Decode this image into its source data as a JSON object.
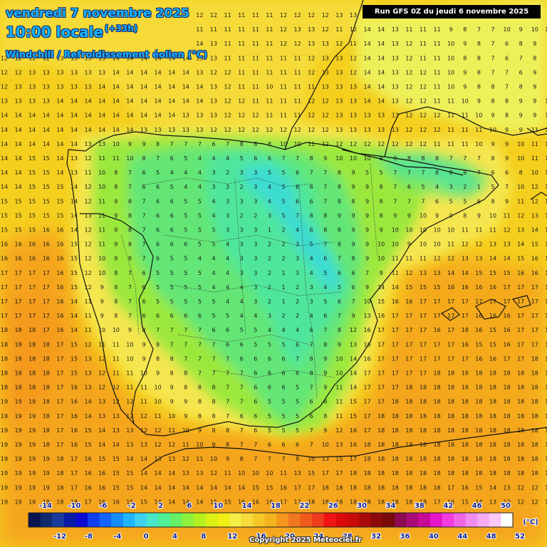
{
  "header": {
    "date_line": "vendredi 7 novembre 2025",
    "time_line": "10:00 locale",
    "lead_time": "(+33h)",
    "variable": "Windchill / Refroidissement éolien (°C)",
    "run_info": "Run GFS 0Z du jeudi 6 novembre 2025"
  },
  "legend": {
    "unit": "(°C)",
    "top_labels": [
      "-14",
      "-10",
      "-6",
      "-2",
      "2",
      "6",
      "10",
      "14",
      "18",
      "22",
      "26",
      "30",
      "34",
      "38",
      "42",
      "46",
      "50"
    ],
    "bottom_labels": [
      "-12",
      "-8",
      "-4",
      "0",
      "4",
      "8",
      "12",
      "16",
      "20",
      "24",
      "28",
      "32",
      "36",
      "40",
      "44",
      "48",
      "52"
    ],
    "colors": [
      "#0a1450",
      "#102a6e",
      "#1a3c9c",
      "#0a1aa8",
      "#0a0ad2",
      "#0f3ef0",
      "#1464ff",
      "#148cff",
      "#1eb4ff",
      "#3cd2f0",
      "#46e6c8",
      "#50f096",
      "#64f064",
      "#8cf03c",
      "#b4f01e",
      "#dcf014",
      "#f0f014",
      "#f5f046",
      "#f5dc3c",
      "#f5c828",
      "#f5b41e",
      "#f5961e",
      "#f0781e",
      "#f05a1e",
      "#f03c1e",
      "#f01414",
      "#dc0a0a",
      "#c80a0a",
      "#aa0a0a",
      "#8c0a0a",
      "#780a0a",
      "#8c0a50",
      "#aa0a78",
      "#c80a96",
      "#e614c8",
      "#f03cdc",
      "#f064e6",
      "#f08cf0",
      "#f5aaf5",
      "#fac8fa",
      "#ffffff"
    ]
  },
  "copyright": "Copyright 2025 Meteociel.fr",
  "grid_values": [
    "11 11 11 11 11 11 11 11 11 12 12 12 13 13 12 12 11 11 11 11 12 12 12 12 13 13 13 12 11 11 11 10 10 9 8 7 7 10 10 10",
    "12 12 12 12 13 13 13 13 14 14 14 14 15 12 11 11 11 11 11 11 12 13 13 12 11 12 14 14 13 11 11 11 9 8 7 7 10 9 10 10",
    "12 12 12 12 13 13 13 13 14 14 14 14 14 14 14 13 11 11 11 11 12 12 13 13 12 11 14 14 13 12 11 11 10 9 8 7 6 8 9 9",
    "12 12 12 12 13 13 13 13 14 14 14 14 14 14 13 13 11 11 11 11 11 11 12 13 13 12 14 14 13 12 11 11 10 8 8 7 6 7 8 8",
    "12 12 13 13 13 13 13 13 14 14 14 14 14 14 13 12 12 11 11 11 11 11 12 13 13 12 14 14 13 12 12 11 10 9 8 7 7 6 9 9",
    "12 13 13 13 13 13 13 14 14 14 14 14 14 14 14 13 12 11 11 10 11 11 11 13 13 13 14 14 13 12 12 11 10 9 8 8 7 8 9 9",
    "13 13 13 13 14 14 14 14 14 14 14 14 14 14 14 13 12 12 11 11 11 11 12 12 13 13 14 14 13 12 12 11 11 10 9 8 8 9 9 10",
    "14 14 14 14 14 14 14 14 14 14 14 14 14 13 13 13 12 12 12 11 11 11 12 12 13 13 13 13 13 12 12 12 11 11 10 9 8 9 9 10",
    "14 14 14 14 14 14 14 14 14 14 13 13 13 13 13 12 12 12 12 12 12 12 12 12 13 13 13 13 13 12 12 12 11 11 11 10 9 9 11 11",
    "14 14 14 14 14 14 13 13 10 9 9 8 7 7 7 6 7 8 8 8 10 10 11 12 12 12 12 12 12 12 12 11 11 11 10 9 9 10 11 12",
    "14 14 15 15 14 13 12 11 11 10 8 7 6 5 4 4 4 5 6 6 7 7 8 9 10 10 10 9 9 8 8 8 7 7 7 8 9 10 11 12",
    "14 14 15 15 14 13 11 10 8 7 6 5 4 4 4 3 2 3 3 5 5 6 7 7 8 9 5 5 7 7 7 8 8 8 7 6 6 8 10 12",
    "14 14 15 15 15 14 12 10 8 7 6 6 5 4 4 3 3 2 3 4 5 6 6 7 8 9 9 8 7 6 5 4 3 2 1 5 7 10 12 12",
    "15 15 15 15 15 14 12 11 9 8 7 6 6 5 5 4 3 3 3 4 5 6 6 7 8 8 9 8 7 7 7 6 5 5 6 8 9 11 12 13",
    "15 15 15 15 15 14 13 11 9 8 7 6 6 5 5 4 3 2 2 3 5 7 8 8 9 9 9 8 9 9 10 9 9 8 9 10 11 12 13 14",
    "15 15 15 16 16 14 12 11 9 8 7 6 6 5 5 5 3 3 3 1 2 4 6 8 8 9 9 9 10 10 10 10 10 11 11 11 12 13 14 15",
    "16 16 16 16 16 15 12 11 9 8 7 6 6 6 5 5 4 3 3 2 2 3 5 7 8 9 9 10 10 9 10 10 11 12 12 13 13 14 15 16",
    "16 16 16 16 16 15 12 10 9 8 7 6 5 5 4 4 4 3 3 2 2 3 4 6 7 8 9 10 11 11 11 12 12 13 13 14 14 15 16 16",
    "17 17 17 17 16 15 12 10 8 7 6 5 5 5 5 4 4 3 3 2 1 3 4 5 6 6 7 9 11 12 13 13 14 14 15 15 15 16 16 17",
    "17 17 17 17 16 15 12 9 8 7 6 5 5 5 5 4 4 4 3 2 1 2 3 4 5 6 9 14 14 15 15 15 16 16 16 16 17 17 17 17",
    "17 17 17 17 16 14 11 9 8 7 6 5 5 5 5 5 4 4 3 2 1 2 3 5 6 7 10 15 16 16 17 17 17 17 17 17 17 17 17 17",
    "17 17 17 17 16 14 11 9 8 7 6 6 6 6 6 5 5 4 4 3 2 2 4 6 7 9 13 16 17 17 17 17 17 17 16 16 16 17 17 17",
    "18 18 18 17 16 14 11 10 10 9 8 7 7 7 7 6 6 5 5 4 4 4 6 7 8 12 16 17 17 17 17 16 17 18 16 15 16 17 17 18",
    "18 18 18 18 17 15 12 11 11 10 9 8 7 7 7 7 6 6 5 5 5 6 7 8 9 13 16 17 17 17 17 17 17 16 15 15 16 17 17 18",
    "18 18 18 18 17 15 13 12 11 10 9 8 8 7 7 7 7 6 6 6 6 7 8 9 10 14 16 17 17 17 17 17 17 17 16 16 17 17 18 18",
    "18 18 18 18 17 15 13 12 11 11 10 9 8 8 7 7 7 7 6 6 6 6 8 9 10 14 17 17 17 17 17 18 18 18 18 18 18 18 18 18",
    "18 18 18 18 17 16 13 12 12 11 11 10 9 8 8 8 7 7 6 6 6 5 7 9 11 14 17 17 17 18 18 18 18 18 18 18 18 18 18 18",
    "19 19 19 18 17 16 14 13 12 12 11 10 9 9 8 8 7 7 6 5 5 5 6 8 11 15 17 17 18 18 18 18 18 18 18 18 18 18 18 18",
    "19 19 19 18 17 16 14 13 13 12 12 11 10 9 8 8 7 6 6 5 5 5 6 8 11 15 17 18 18 18 18 18 18 18 18 18 18 18 18 18",
    "19 19 19 18 17 16 15 14 13 13 12 12 11 10 9 8 8 7 6 5 5 5 7 9 12 16 17 18 18 18 18 18 18 18 18 18 18 18 18 18",
    "19 19 19 18 17 16 15 14 14 13 13 12 12 11 10 9 8 7 7 6 6 6 7 10 13 16 18 18 18 18 18 18 18 18 18 18 18 18 18 18",
    "19 19 19 19 18 17 16 15 15 14 14 13 13 12 11 10 9 8 7 7 7 8 10 13 15 17 18 18 18 18 18 18 18 18 18 18 18 18 18 18",
    "19 19 19 19 18 17 16 16 15 15 14 14 14 13 13 12 11 10 10 10 11 13 15 17 17 18 18 18 18 18 18 18 18 18 18 18 18 18 18 18",
    "19 19 19 19 18 17 16 16 15 15 14 14 14 14 14 14 14 14 15 15 16 17 17 18 18 18 18 18 18 18 18 18 17 16 15 14 13 12 12 12",
    "19 19 19 19 18 18 17 16 16 15 15 14 14 14 14 15 15 16 16 16 17 17 18 18 18 18 18 18 18 18 18 17 16 15 14 13 12 12 12 12",
    "19 19 19 19 19 18 18 17 17 16 16 15 15 15 16 16 16 17 17 17 17 18 18 18 18 18 18 18 18 18 17 16 15 14 13 12 12 12 12 12",
    "19 19 19 19 19 19 18 18 17 17 17 16 16 16 16 17 17 17 17 18 18 18 18 18 18 18 18 18 18 18 18 17 16 15 14 13 12 12 12 12",
    "19 19 19 19 19 19 19 18 18 18 17 17 17 17 17 17 17 18 18 18 18 18 18 18 18 18 18 18 18 18 18 18 17 16 15 14 13 12 12 12",
    "19 19 19 19 19 19 19 18 18 18 18 18 18 17 17 17 17 18 18 18 18 18 18 18 18 18 18 18 18 18 18 18 18 17 16 15 14 13 12 12"
  ]
}
